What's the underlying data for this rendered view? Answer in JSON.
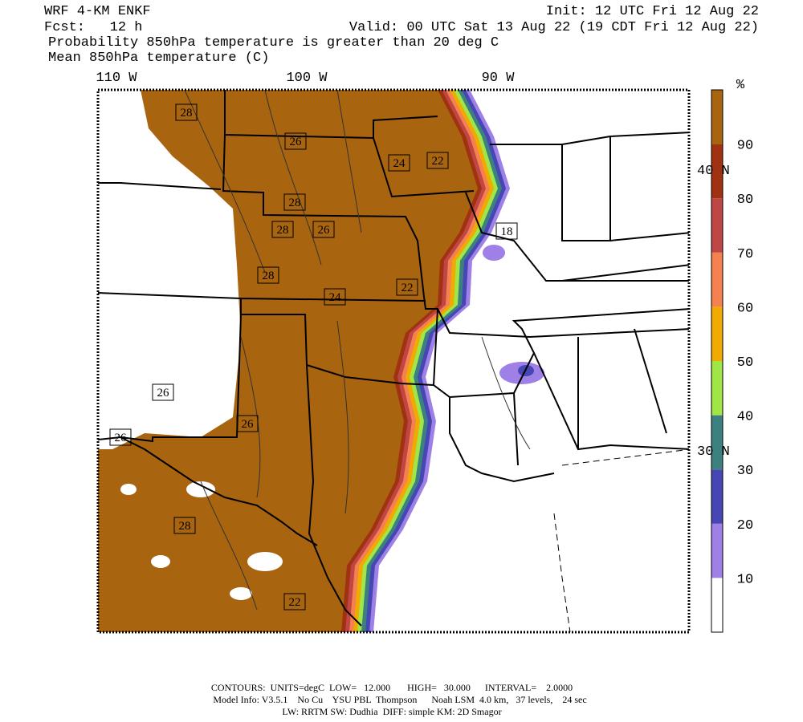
{
  "header": {
    "model": "WRF 4-KM ENKF",
    "forecast": "Fcst:   12 h",
    "init": "Init: 12 UTC Fri 12 Aug 22",
    "valid": "Valid: 00 UTC Sat 13 Aug 22 (19 CDT Fri 12 Aug 22)",
    "title": "Probability 850hPa temperature is greater than 20 deg C",
    "subtitle": "Mean 850hPa temperature (C)"
  },
  "map": {
    "longitude_labels": [
      "110 W",
      "100 W",
      "90 W"
    ],
    "latitude_labels": [
      "40 N",
      "30 N"
    ],
    "contour_labels": [
      "28",
      "26",
      "24",
      "22",
      "28",
      "28",
      "26",
      "18",
      "28",
      "24",
      "22",
      "26",
      "26",
      "26",
      "28",
      "22"
    ]
  },
  "colorbar": {
    "unit": "%",
    "labels": [
      10,
      20,
      30,
      40,
      50,
      60,
      70,
      80,
      90
    ],
    "colors": [
      "#ffffff",
      "#9f80e6",
      "#4646b4",
      "#3c8080",
      "#a0e646",
      "#f0aa00",
      "#f58050",
      "#c04646",
      "#a03212",
      "#a8640f"
    ]
  },
  "footer": {
    "contours": "CONTOURS:  UNITS=degC  LOW=   12.000       HIGH=   30.000      INTERVAL=    2.0000",
    "model_info": "Model Info: V3.5.1    No Cu    YSU PBL  Thompson      Noah LSM  4.0 km,   37 levels,    24 sec",
    "physics": "LW: RRTM SW: Dudhia  DIFF: simple KM: 2D Smagor"
  }
}
